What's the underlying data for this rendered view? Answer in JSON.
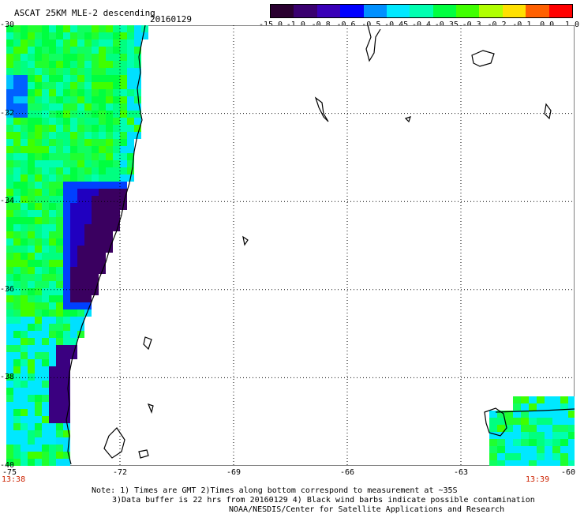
{
  "header": {
    "title": "ASCAT 25KM MLE-2 descending",
    "date": "20160129"
  },
  "colorbar": {
    "labels": [
      "-15.0",
      "-1.0",
      "-0.8",
      "-0.6",
      "-0.5",
      "-0.45",
      "-0.4",
      "-0.35",
      "-0.3",
      "-0.2",
      "-0.1",
      "0.0",
      "1.0"
    ],
    "colors": [
      "#2a0030",
      "#3a0070",
      "#3a00b8",
      "#0000ff",
      "#0090ff",
      "#00e8ff",
      "#00ffb0",
      "#00ff40",
      "#40ff00",
      "#b0ff00",
      "#ffe000",
      "#ff6000",
      "#ff0000"
    ]
  },
  "axes": {
    "lat_labels": [
      "-30",
      "-32",
      "-34",
      "-36",
      "-38",
      "-40"
    ],
    "lon_labels": [
      "-75",
      "-72",
      "-69",
      "-66",
      "-63",
      "-60"
    ]
  },
  "times": {
    "left": "13:38",
    "right": "13:39"
  },
  "notes": {
    "line1": "Note: 1) Times are GMT 2)Times along bottom correspond to measurement at ~35S",
    "line2": "3)Data buffer is 22 hrs from 20160129 4) Black wind barbs indicate possible contamination",
    "line3": "NOAA/NESDIS/Center for Satellite Applications and Research"
  }
}
